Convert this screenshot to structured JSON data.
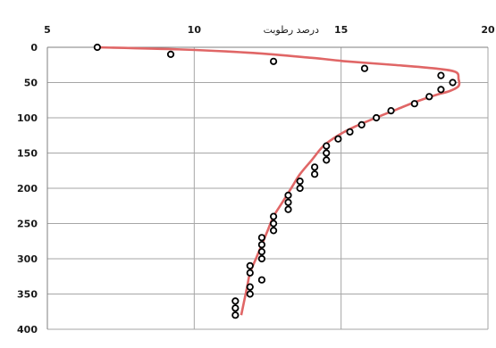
{
  "chart_data": {
    "type": "scatter",
    "title": "",
    "xlabel": "درصد رطوبت",
    "ylabel": "",
    "x_axis_position": "top",
    "y_axis_inverted": true,
    "xlim": [
      5,
      20
    ],
    "ylim": [
      0,
      400
    ],
    "x_ticks": [
      5,
      10,
      15,
      20
    ],
    "y_ticks": [
      0,
      50,
      100,
      150,
      200,
      250,
      300,
      350,
      400
    ],
    "grid": true,
    "legend": "none",
    "colors": {
      "points": "#000000",
      "curve": "#e06666",
      "grid": "#a6a6a6",
      "axis": "#7f7f7f"
    },
    "series": [
      {
        "kind": "points",
        "points": [
          [
            6.7,
            0
          ],
          [
            9.2,
            10
          ],
          [
            12.7,
            20
          ],
          [
            15.8,
            30
          ],
          [
            18.4,
            40
          ],
          [
            18.8,
            50
          ],
          [
            18.4,
            60
          ],
          [
            18.0,
            70
          ],
          [
            17.5,
            80
          ],
          [
            16.7,
            90
          ],
          [
            16.2,
            100
          ],
          [
            15.7,
            110
          ],
          [
            15.3,
            120
          ],
          [
            14.9,
            130
          ],
          [
            14.5,
            140
          ],
          [
            14.5,
            150
          ],
          [
            14.5,
            160
          ],
          [
            14.1,
            170
          ],
          [
            14.1,
            180
          ],
          [
            13.6,
            190
          ],
          [
            13.6,
            200
          ],
          [
            13.2,
            210
          ],
          [
            13.2,
            220
          ],
          [
            13.2,
            230
          ],
          [
            12.7,
            240
          ],
          [
            12.7,
            250
          ],
          [
            12.7,
            260
          ],
          [
            12.3,
            270
          ],
          [
            12.3,
            280
          ],
          [
            12.3,
            290
          ],
          [
            12.3,
            300
          ],
          [
            11.9,
            310
          ],
          [
            11.9,
            320
          ],
          [
            12.3,
            330
          ],
          [
            11.9,
            340
          ],
          [
            11.9,
            350
          ],
          [
            11.4,
            360
          ],
          [
            11.4,
            370
          ],
          [
            11.4,
            380
          ]
        ]
      },
      {
        "kind": "curve",
        "points": [
          [
            6.7,
            0
          ],
          [
            9.5,
            3
          ],
          [
            12.0,
            8
          ],
          [
            14.0,
            15
          ],
          [
            15.2,
            20
          ],
          [
            16.8,
            25
          ],
          [
            18.2,
            30
          ],
          [
            18.9,
            35
          ],
          [
            19.0,
            45
          ],
          [
            19.0,
            55
          ],
          [
            18.7,
            62
          ],
          [
            18.2,
            68
          ],
          [
            17.5,
            78
          ],
          [
            16.9,
            88
          ],
          [
            16.3,
            98
          ],
          [
            15.5,
            112
          ],
          [
            14.9,
            125
          ],
          [
            14.4,
            140
          ],
          [
            14.0,
            160
          ],
          [
            13.6,
            180
          ],
          [
            13.3,
            200
          ],
          [
            13.0,
            220
          ],
          [
            12.7,
            240
          ],
          [
            12.5,
            260
          ],
          [
            12.3,
            280
          ],
          [
            12.1,
            300
          ],
          [
            11.9,
            320
          ],
          [
            11.8,
            340
          ],
          [
            11.7,
            360
          ],
          [
            11.6,
            380
          ]
        ]
      }
    ]
  }
}
